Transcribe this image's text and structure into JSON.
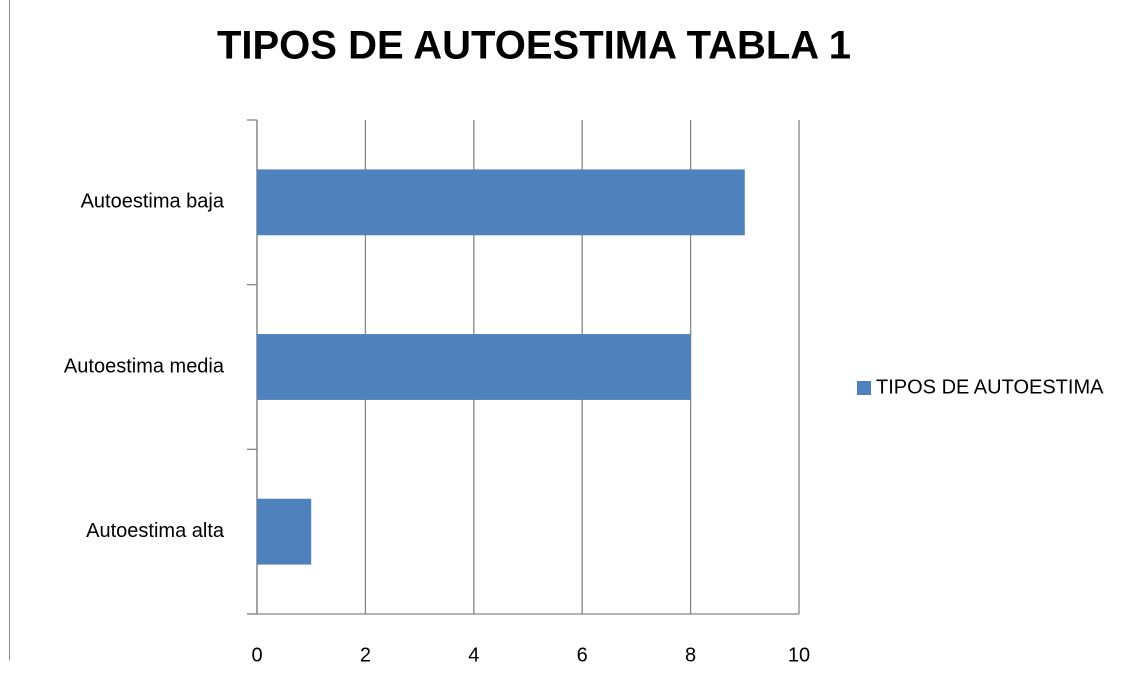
{
  "chart_data": {
    "type": "bar",
    "orientation": "horizontal",
    "title": "TIPOS DE AUTOESTIMA TABLA 1",
    "categories": [
      "Autoestima alta",
      "Autoestima media",
      "Autoestima baja"
    ],
    "series": [
      {
        "name": "TIPOS DE AUTOESTIMA",
        "color": "#4f81bd",
        "values": [
          1,
          8,
          9
        ]
      }
    ],
    "xlim": [
      0,
      10
    ],
    "xticks": [
      0,
      2,
      4,
      6,
      8,
      10
    ],
    "grid": true,
    "legend": "right"
  }
}
